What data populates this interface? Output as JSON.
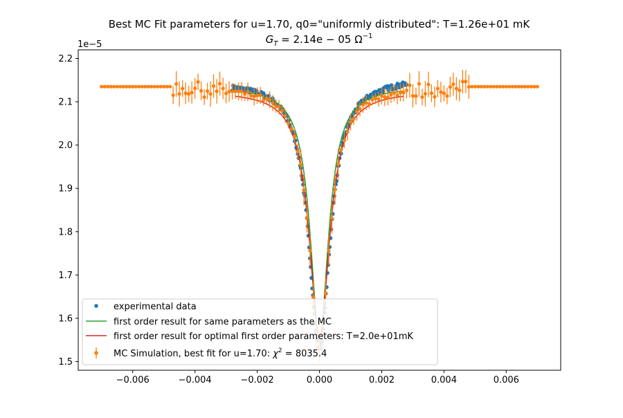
{
  "chart_data": {
    "type": "scatter",
    "title_line1": "Best MC Fit parameters for u=1.70, q0=\"uniformly distributed\":  T=1.26e+01 mK",
    "title_line2_main": "G",
    "title_line2_sub": "T",
    "title_line2_rest": " = 2.14e − 05 Ω",
    "title_line2_sup": "−1",
    "y_offset_label": "1e−5",
    "xlim": [
      -0.00775,
      0.00775
    ],
    "ylim": [
      1.48,
      2.22
    ],
    "x_ticks": [
      -0.006,
      -0.004,
      -0.002,
      0.0,
      0.002,
      0.004,
      0.006
    ],
    "x_tick_labels": [
      "−0.006",
      "−0.004",
      "−0.002",
      "0.000",
      "0.002",
      "0.004",
      "0.006"
    ],
    "y_ticks": [
      1.5,
      1.6,
      1.7,
      1.8,
      1.9,
      2.0,
      2.1,
      2.2
    ],
    "y_tick_labels": [
      "1.5",
      "1.6",
      "1.7",
      "1.8",
      "1.9",
      "2.0",
      "2.1",
      "2.2"
    ],
    "legend_position": "lower left",
    "series": [
      {
        "name": "experimental data",
        "kind": "points",
        "color": "#1f77b4",
        "model": {
          "base": 2.15,
          "depth": 0.62,
          "width": 0.00042,
          "x_range": [
            -0.0028,
            0.0028
          ],
          "count": 230
        }
      },
      {
        "name": "first order result for same parameters as the MC",
        "kind": "line",
        "color": "#2ca02c",
        "model": {
          "base": 2.135,
          "depth": 0.58,
          "width": 0.00036,
          "x_range": [
            -0.0027,
            0.0027
          ]
        }
      },
      {
        "name": "first order result for optimal first order parameters: T=2.0e+01mK",
        "kind": "line",
        "color": "#d62728",
        "model": {
          "base": 2.125,
          "depth": 0.57,
          "width": 0.0004,
          "x_range": [
            -0.0027,
            0.0027
          ]
        }
      },
      {
        "name": "MC Simulation, best fit for u=1.70:  χ² = 8035.4",
        "name_prefix": "MC Simulation, best fit for u=1.70:  ",
        "name_chi": "χ",
        "name_sup": "2",
        "name_suffix": " = 8035.4",
        "kind": "errorbar",
        "color": "#ff7f0e",
        "model": {
          "base": 2.135,
          "depth": 0.6,
          "width": 0.0004,
          "x_range": [
            -0.007,
            0.007
          ],
          "step": 0.0001,
          "flat_outside": 0.0048
        }
      }
    ]
  }
}
